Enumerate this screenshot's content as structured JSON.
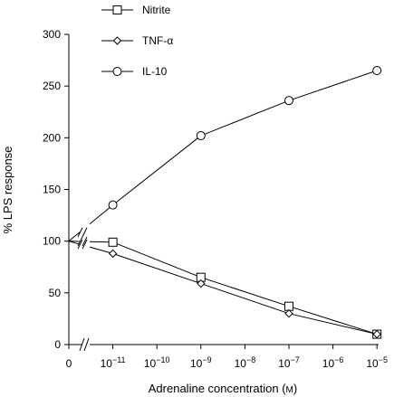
{
  "chart_data": {
    "type": "line",
    "title": "",
    "xlabel": "Adrenaline concentration (M)",
    "ylabel": "% LPS response",
    "ylim": [
      0,
      300
    ],
    "y_ticks": [
      "0",
      "50",
      "100",
      "150",
      "200",
      "250",
      "300"
    ],
    "x_ticks": [
      {
        "label": "0",
        "pos": 0
      },
      {
        "label": "10",
        "exp": "−11",
        "pos": 1
      },
      {
        "label": "10",
        "exp": "−10",
        "pos": 2
      },
      {
        "label": "10",
        "exp": "−9",
        "pos": 3
      },
      {
        "label": "10",
        "exp": "−8",
        "pos": 4
      },
      {
        "label": "10",
        "exp": "−7",
        "pos": 5
      },
      {
        "label": "10",
        "exp": "−6",
        "pos": 6
      },
      {
        "label": "10",
        "exp": "−5",
        "pos": 7
      }
    ],
    "axis_break": true,
    "grid": false,
    "legend_position": "top",
    "series": [
      {
        "name": "Nitrite",
        "marker": "square",
        "x": [
          0,
          1,
          3,
          5,
          7
        ],
        "values": [
          100,
          99,
          65,
          37,
          10
        ]
      },
      {
        "name": "TNF-α",
        "marker": "diamond",
        "x": [
          0,
          1,
          3,
          5,
          7
        ],
        "values": [
          100,
          88,
          59,
          30,
          10
        ]
      },
      {
        "name": "IL-10",
        "marker": "circle",
        "x": [
          0,
          1,
          3,
          5,
          7
        ],
        "values": [
          100,
          135,
          202,
          236,
          265
        ]
      }
    ]
  }
}
